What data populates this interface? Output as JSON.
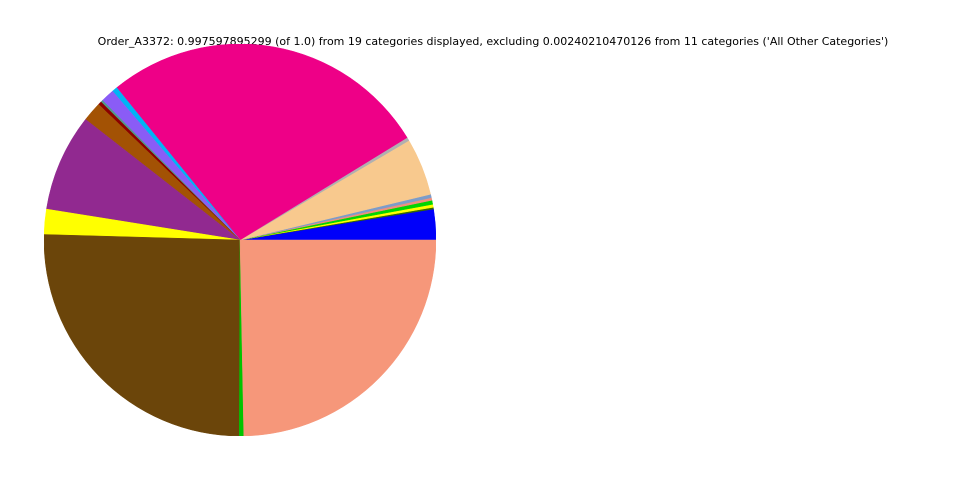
{
  "chart": {
    "title": "Order_A3372: 0.997597895299 (of 1.0) from 19 categories displayed, excluding 0.00240210470126 from 11 categories ('All Other Categories')"
  },
  "chart_data": {
    "type": "pie",
    "title": "Order_A3372: 0.997597895299 (of 1.0) from 19 categories displayed, excluding 0.00240210470126 from 11 categories ('All Other Categories')",
    "total_displayed": 0.997597895299,
    "total_excluded": 0.00240210470126,
    "categories_displayed_count": 19,
    "categories_excluded_count": 11,
    "excluded_label": "All Other Categories",
    "start_angle_deg": 0,
    "direction": "counterclockwise",
    "legend_position": "none",
    "background_color": "#ffffff",
    "segments": [
      {
        "name": "segment-01-blue",
        "color": "#0000fa",
        "value": 0.0252
      },
      {
        "name": "segment-02-darkgreen",
        "color": "#336600",
        "value": 0.0014
      },
      {
        "name": "segment-03-yellow-sliver",
        "color": "#ffff00",
        "value": 0.0025
      },
      {
        "name": "segment-04-green-sliver",
        "color": "#00d500",
        "value": 0.0033
      },
      {
        "name": "segment-05-salmon-sliver",
        "color": "#f0907c",
        "value": 0.0022
      },
      {
        "name": "segment-06-slateblue",
        "color": "#7d9cc9",
        "value": 0.0028
      },
      {
        "name": "segment-07-peach",
        "color": "#f8c98e",
        "value": 0.0471
      },
      {
        "name": "segment-08-gray-sliver",
        "color": "#b0b0b0",
        "value": 0.0028
      },
      {
        "name": "segment-09-magenta",
        "color": "#ee0087",
        "value": 0.2701
      },
      {
        "name": "segment-10-cyan-sliver",
        "color": "#00b4f5",
        "value": 0.0044
      },
      {
        "name": "segment-11-blueviolet",
        "color": "#8a5cf6",
        "value": 0.0111
      },
      {
        "name": "segment-12-teal-sliver",
        "color": "#4f9b88",
        "value": 0.0017
      },
      {
        "name": "segment-13-darkred",
        "color": "#8b0000",
        "value": 0.0028
      },
      {
        "name": "segment-14-saddlebrown",
        "color": "#a35204",
        "value": 0.0161
      },
      {
        "name": "segment-15-purple",
        "color": "#912990",
        "value": 0.0801
      },
      {
        "name": "segment-16-yellow",
        "color": "#ffff00",
        "value": 0.0207
      },
      {
        "name": "segment-17-darkbrown",
        "color": "#6b450a",
        "value": 0.2533
      },
      {
        "name": "segment-18-green-sliver",
        "color": "#00c400",
        "value": 0.0036
      },
      {
        "name": "segment-19-salmon",
        "color": "#f6977a",
        "value": 0.2463
      }
    ]
  }
}
